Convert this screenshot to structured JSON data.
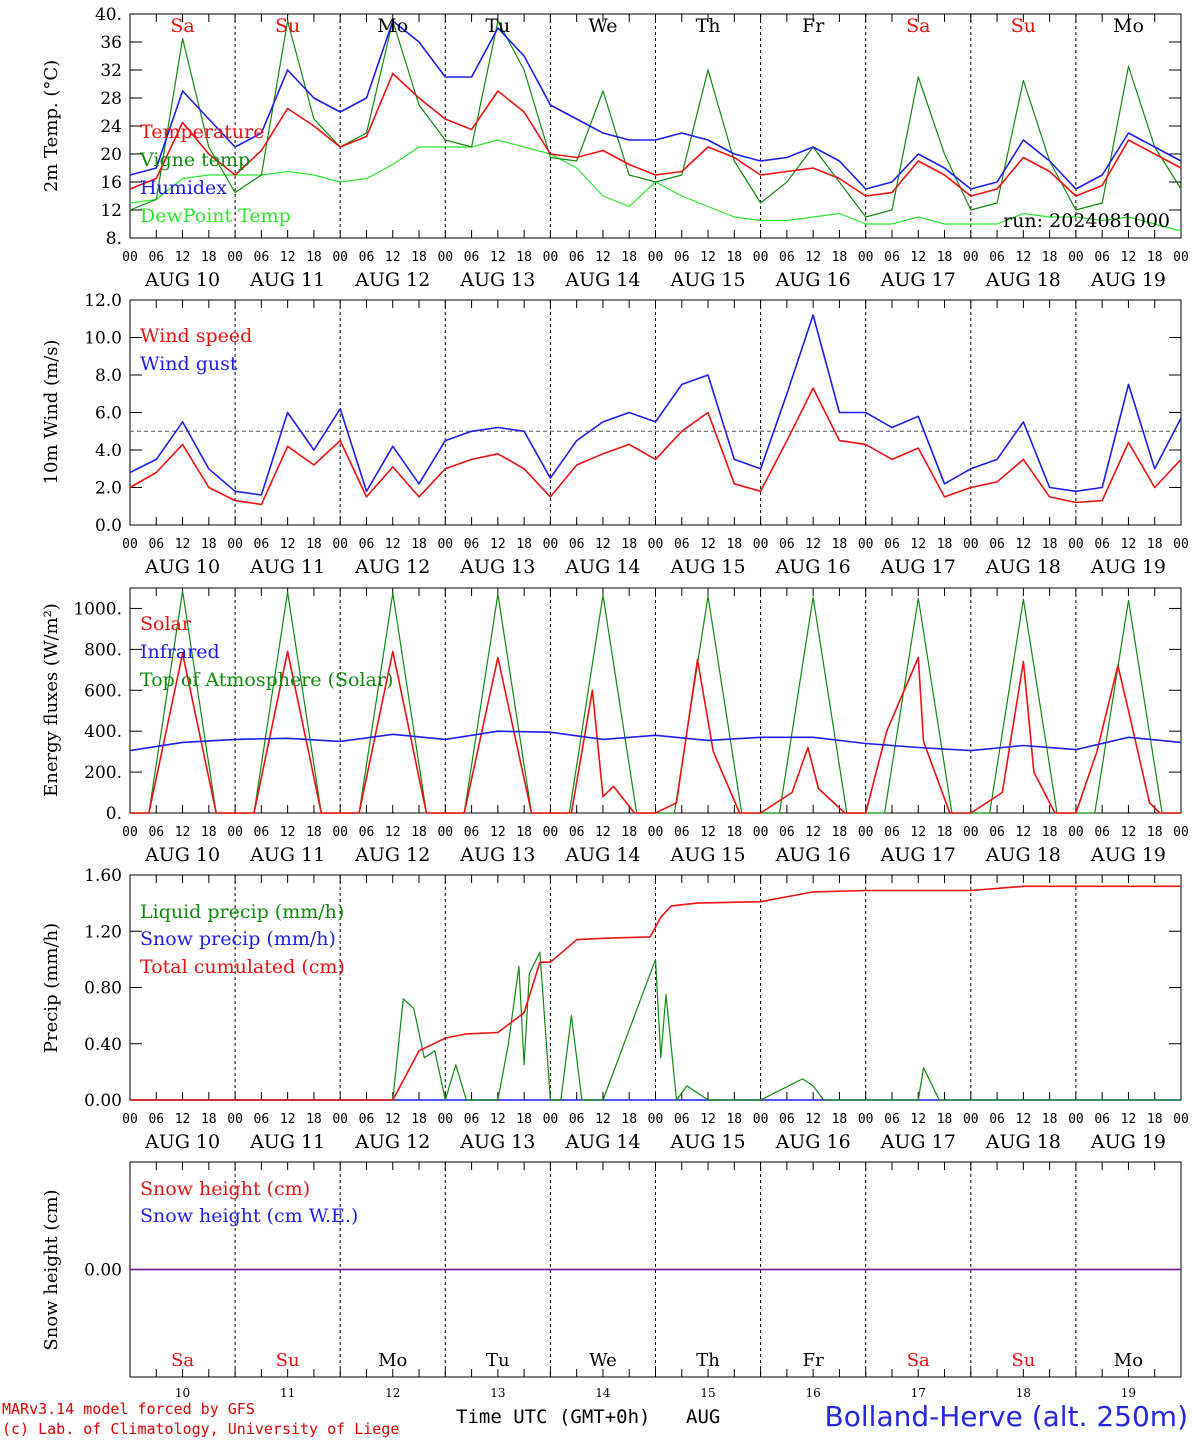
{
  "colors": {
    "red": "#ee1111",
    "green": "#0f8a0f",
    "blue": "#1d1dee",
    "lime": "#2ee62e",
    "purple": "#7a1fa0",
    "black": "#000000"
  },
  "run_label": "run: 2024081000",
  "day_names": [
    "Sa",
    "Su",
    "Mo",
    "Tu",
    "We",
    "Th",
    "Fr",
    "Sa",
    "Su",
    "Mo"
  ],
  "day_name_colors": [
    "red",
    "red",
    "black",
    "black",
    "black",
    "black",
    "black",
    "red",
    "red",
    "black"
  ],
  "date_labels": [
    "AUG 10",
    "AUG 11",
    "AUG 12",
    "AUG 13",
    "AUG 14",
    "AUG 15",
    "AUG 16",
    "AUG 17",
    "AUG 18",
    "AUG 19"
  ],
  "day_numbers": [
    "10",
    "11",
    "12",
    "13",
    "14",
    "15",
    "16",
    "17",
    "18",
    "19"
  ],
  "hour_ticks": [
    "00",
    "06",
    "12",
    "18"
  ],
  "final_tick": "00",
  "footer": {
    "credit_line1": "MARv3.14 model forced by GFS",
    "credit_line2": "(c) Lab. of Climatology, University of Liege",
    "x_axis_label": "Time UTC (GMT+0h)",
    "month": "AUG",
    "station": "Bolland-Herve (alt. 250m)"
  },
  "chart_data": [
    {
      "type": "line",
      "ylabel": "2m Temp. (°C)",
      "yticks": [
        "8.",
        "12",
        "16",
        "20",
        "24",
        "28",
        "32",
        "36",
        "40."
      ],
      "ylim": [
        8,
        40
      ],
      "x_unit": "days since AUG 10 00 UTC",
      "xlim": [
        0,
        10
      ],
      "series": [
        {
          "name": "Temperature",
          "color": "red",
          "x": [
            0,
            0.25,
            0.5,
            0.75,
            1,
            1.25,
            1.5,
            1.75,
            2,
            2.25,
            2.5,
            2.75,
            3,
            3.25,
            3.5,
            3.75,
            4,
            4.25,
            4.5,
            4.75,
            5,
            5.25,
            5.5,
            5.75,
            6,
            6.25,
            6.5,
            6.75,
            7,
            7.25,
            7.5,
            7.75,
            8,
            8.25,
            8.5,
            8.75,
            9,
            9.25,
            9.5,
            9.75,
            10
          ],
          "y": [
            15,
            16.5,
            24.5,
            20,
            17,
            20.5,
            26.5,
            24,
            21,
            22.5,
            31.5,
            28,
            25,
            23.5,
            29,
            26,
            20,
            19.5,
            20.5,
            18.5,
            17,
            17.5,
            21,
            19.5,
            17,
            17.5,
            18,
            16.5,
            14,
            14.5,
            19,
            17,
            14,
            15,
            19.5,
            17.5,
            14,
            15.5,
            22,
            20,
            18
          ]
        },
        {
          "name": "Vigne temp",
          "color": "green",
          "x": [
            0,
            0.25,
            0.5,
            0.75,
            1,
            1.25,
            1.5,
            1.75,
            2,
            2.25,
            2.5,
            2.75,
            3,
            3.25,
            3.5,
            3.75,
            4,
            4.25,
            4.5,
            4.75,
            5,
            5.25,
            5.5,
            5.75,
            6,
            6.25,
            6.5,
            6.75,
            7,
            7.25,
            7.5,
            7.75,
            8,
            8.25,
            8.5,
            8.75,
            9,
            9.25,
            9.5,
            9.75,
            10
          ],
          "y": [
            12,
            13.5,
            36.5,
            21,
            14.5,
            17,
            39,
            25,
            21,
            23,
            39,
            27,
            22,
            21,
            39,
            32,
            19.5,
            19,
            29,
            17,
            16,
            17,
            32,
            19,
            13,
            16,
            21,
            16,
            11,
            12,
            31,
            20,
            12,
            13,
            30.5,
            19,
            12,
            13,
            32.5,
            21,
            15
          ]
        },
        {
          "name": "Humidex",
          "color": "blue",
          "x": [
            0,
            0.25,
            0.5,
            0.75,
            1,
            1.25,
            1.5,
            1.75,
            2,
            2.25,
            2.5,
            2.75,
            3,
            3.25,
            3.5,
            3.75,
            4,
            4.25,
            4.5,
            4.75,
            5,
            5.25,
            5.5,
            5.75,
            6,
            6.25,
            6.5,
            6.75,
            7,
            7.25,
            7.5,
            7.75,
            8,
            8.25,
            8.5,
            8.75,
            9,
            9.25,
            9.5,
            9.75,
            10
          ],
          "y": [
            17,
            18,
            29,
            25,
            21,
            23,
            32,
            28,
            26,
            28,
            39,
            36,
            31,
            31,
            38,
            34,
            27,
            25,
            23,
            22,
            22,
            23,
            22,
            20,
            19,
            19.5,
            21,
            19,
            15,
            16,
            20,
            18,
            15,
            16,
            22,
            19,
            15,
            17,
            23,
            21,
            19
          ]
        },
        {
          "name": "DewPoint Temp",
          "color": "lime",
          "x": [
            0,
            0.25,
            0.5,
            0.75,
            1,
            1.25,
            1.5,
            1.75,
            2,
            2.25,
            2.5,
            2.75,
            3,
            3.25,
            3.5,
            3.75,
            4,
            4.25,
            4.5,
            4.75,
            5,
            5.25,
            5.5,
            5.75,
            6,
            6.25,
            6.5,
            6.75,
            7,
            7.25,
            7.5,
            7.75,
            8,
            8.25,
            8.5,
            8.75,
            9,
            9.25,
            9.5,
            9.75,
            10
          ],
          "y": [
            13,
            13.5,
            16.5,
            17,
            17,
            17,
            17.5,
            17,
            16,
            16.5,
            18.5,
            21,
            21,
            21,
            22,
            21,
            20,
            18,
            14,
            12.5,
            16,
            14,
            12.5,
            11,
            10.5,
            10.5,
            11,
            11.5,
            10,
            10,
            11,
            10,
            10,
            10,
            11.5,
            11,
            11,
            10.5,
            11,
            10,
            9
          ]
        }
      ]
    },
    {
      "type": "line",
      "ylabel": "10m Wind (m/s)",
      "yticks": [
        "0.0",
        "2.0",
        "4.0",
        "6.0",
        "8.0",
        "10.0",
        "12.0"
      ],
      "ylim": [
        0,
        12
      ],
      "reference_line": 5,
      "x_unit": "days since AUG 10 00 UTC",
      "xlim": [
        0,
        10
      ],
      "series": [
        {
          "name": "Wind speed",
          "color": "red",
          "x": [
            0,
            0.25,
            0.5,
            0.75,
            1,
            1.25,
            1.5,
            1.75,
            2,
            2.25,
            2.5,
            2.75,
            3,
            3.25,
            3.5,
            3.75,
            4,
            4.25,
            4.5,
            4.75,
            5,
            5.25,
            5.5,
            5.75,
            6,
            6.25,
            6.5,
            6.75,
            7,
            7.25,
            7.5,
            7.75,
            8,
            8.25,
            8.5,
            8.75,
            9,
            9.25,
            9.5,
            9.75,
            10
          ],
          "y": [
            2,
            2.8,
            4.3,
            2,
            1.3,
            1.1,
            4.2,
            3.2,
            4.5,
            1.5,
            3.1,
            1.5,
            3,
            3.5,
            3.8,
            3,
            1.5,
            3.2,
            3.8,
            4.3,
            3.5,
            5,
            6,
            2.2,
            1.8,
            4.5,
            7.3,
            4.5,
            4.3,
            3.5,
            4.1,
            1.5,
            2,
            2.3,
            3.5,
            1.5,
            1.2,
            1.3,
            4.4,
            2,
            3.5
          ]
        },
        {
          "name": "Wind gust",
          "color": "blue",
          "x": [
            0,
            0.25,
            0.5,
            0.75,
            1,
            1.25,
            1.5,
            1.75,
            2,
            2.25,
            2.5,
            2.75,
            3,
            3.25,
            3.5,
            3.75,
            4,
            4.25,
            4.5,
            4.75,
            5,
            5.25,
            5.5,
            5.75,
            6,
            6.25,
            6.5,
            6.75,
            7,
            7.25,
            7.5,
            7.75,
            8,
            8.25,
            8.5,
            8.75,
            9,
            9.25,
            9.5,
            9.75,
            10
          ],
          "y": [
            2.8,
            3.5,
            5.5,
            3,
            1.8,
            1.6,
            6,
            4,
            6.2,
            1.8,
            4.2,
            2.2,
            4.5,
            5,
            5.2,
            5,
            2.5,
            4.5,
            5.5,
            6,
            5.5,
            7.5,
            8,
            3.5,
            3,
            7,
            11.2,
            6,
            6,
            5.2,
            5.8,
            2.2,
            3,
            3.5,
            5.5,
            2,
            1.8,
            2,
            7.5,
            3,
            5.7
          ]
        }
      ]
    },
    {
      "type": "line",
      "ylabel": "Energy fluxes (W/m²)",
      "yticks": [
        "0.",
        "200.",
        "400.",
        "600.",
        "800.",
        "1000."
      ],
      "ylim": [
        0,
        1100
      ],
      "x_unit": "days since AUG 10 00 UTC",
      "xlim": [
        0,
        10
      ],
      "series": [
        {
          "name": "Solar",
          "color": "red",
          "x": [
            0,
            0.18,
            0.5,
            0.82,
            1,
            1.18,
            1.5,
            1.82,
            2,
            2.18,
            2.5,
            2.82,
            3,
            3.18,
            3.5,
            3.82,
            4,
            4.2,
            4.4,
            4.5,
            4.6,
            4.8,
            5,
            5.2,
            5.4,
            5.55,
            5.8,
            6,
            6.3,
            6.45,
            6.55,
            6.8,
            7,
            7.2,
            7.5,
            7.55,
            7.8,
            8,
            8.3,
            8.5,
            8.6,
            8.8,
            9,
            9.2,
            9.4,
            9.5,
            9.7,
            9.8,
            10
          ],
          "y": [
            0,
            0,
            780,
            0,
            0,
            0,
            790,
            0,
            0,
            0,
            790,
            0,
            0,
            0,
            760,
            0,
            0,
            0,
            600,
            80,
            130,
            0,
            0,
            50,
            750,
            300,
            0,
            0,
            100,
            320,
            120,
            0,
            0,
            400,
            760,
            350,
            0,
            0,
            100,
            740,
            200,
            0,
            0,
            300,
            720,
            500,
            50,
            0,
            0
          ]
        },
        {
          "name": "Infrared",
          "color": "blue",
          "x": [
            0,
            0.5,
            1,
            1.5,
            2,
            2.5,
            3,
            3.5,
            4,
            4.5,
            5,
            5.5,
            6,
            6.5,
            7,
            7.5,
            8,
            8.5,
            9,
            9.5,
            10
          ],
          "y": [
            305,
            345,
            360,
            365,
            350,
            385,
            360,
            400,
            395,
            360,
            380,
            355,
            370,
            370,
            340,
            320,
            305,
            330,
            310,
            370,
            345
          ]
        },
        {
          "name": "Top of Atmosphere (Solar)",
          "color": "green",
          "x": [
            0,
            0.18,
            0.5,
            0.82,
            1,
            1.18,
            1.5,
            1.82,
            2,
            2.18,
            2.5,
            2.82,
            3,
            3.18,
            3.5,
            3.82,
            4,
            4.18,
            4.5,
            4.82,
            5,
            5.18,
            5.5,
            5.82,
            6,
            6.18,
            6.5,
            6.82,
            7,
            7.18,
            7.5,
            7.82,
            8,
            8.18,
            8.5,
            8.82,
            9,
            9.18,
            9.5,
            9.82,
            10
          ],
          "y": [
            0,
            0,
            1085,
            0,
            0,
            0,
            1080,
            0,
            0,
            0,
            1075,
            0,
            0,
            0,
            1070,
            0,
            0,
            0,
            1065,
            0,
            0,
            0,
            1060,
            0,
            0,
            0,
            1055,
            0,
            0,
            0,
            1050,
            0,
            0,
            0,
            1045,
            0,
            0,
            0,
            1040,
            0,
            0
          ]
        }
      ]
    },
    {
      "type": "line",
      "ylabel": "Precip (mm/h)",
      "yticks": [
        "0.00",
        "0.40",
        "0.80",
        "1.20",
        "1.60"
      ],
      "ylim": [
        0,
        1.6
      ],
      "x_unit": "days since AUG 10 00 UTC",
      "xlim": [
        0,
        10
      ],
      "series": [
        {
          "name": "Liquid precip (mm/h)",
          "color": "green",
          "x": [
            0,
            2.5,
            2.6,
            2.7,
            2.8,
            2.9,
            3.0,
            3.1,
            3.2,
            3.5,
            3.6,
            3.7,
            3.75,
            3.8,
            3.9,
            4.0,
            4.1,
            4.2,
            4.3,
            4.4,
            4.5,
            5.0,
            5.05,
            5.1,
            5.2,
            5.3,
            5.5,
            6.0,
            6.4,
            6.5,
            6.6,
            7.0,
            7.5,
            7.55,
            7.7,
            8.0,
            10
          ],
          "y": [
            0,
            0,
            0.72,
            0.65,
            0.3,
            0.35,
            0,
            0.25,
            0,
            0,
            0.4,
            0.95,
            0.25,
            0.9,
            1.05,
            0,
            0,
            0.6,
            0,
            0,
            0,
            1.0,
            0.3,
            0.75,
            0,
            0.1,
            0,
            0,
            0.15,
            0.1,
            0,
            0,
            0,
            0.23,
            0,
            0,
            0
          ]
        },
        {
          "name": "Snow precip (mm/h)",
          "color": "blue",
          "x": [
            0,
            10
          ],
          "y": [
            0,
            0
          ]
        },
        {
          "name": "Total cumulated (cm)",
          "color": "red",
          "x": [
            0,
            2.5,
            2.75,
            3.0,
            3.2,
            3.5,
            3.75,
            3.9,
            4.0,
            4.25,
            4.5,
            4.95,
            5.05,
            5.15,
            5.4,
            6.0,
            6.5,
            7.0,
            8.0,
            8.5,
            10
          ],
          "y": [
            0,
            0,
            0.35,
            0.44,
            0.47,
            0.48,
            0.62,
            0.98,
            0.98,
            1.14,
            1.15,
            1.16,
            1.3,
            1.38,
            1.4,
            1.41,
            1.48,
            1.49,
            1.49,
            1.52,
            1.52
          ]
        }
      ]
    },
    {
      "type": "line",
      "ylabel": "Snow height (cm)",
      "yticks": [
        "0.00"
      ],
      "ylim": [
        -1,
        1
      ],
      "x_unit": "days since AUG 10 00 UTC",
      "xlim": [
        0,
        10
      ],
      "series": [
        {
          "name": "Snow height (cm)",
          "color": "red",
          "x": [
            0,
            10
          ],
          "y": [
            0,
            0
          ]
        },
        {
          "name": "Snow height (cm W.E.)",
          "color": "blue",
          "x": [
            0,
            10
          ],
          "y": [
            0,
            0
          ]
        }
      ]
    }
  ]
}
